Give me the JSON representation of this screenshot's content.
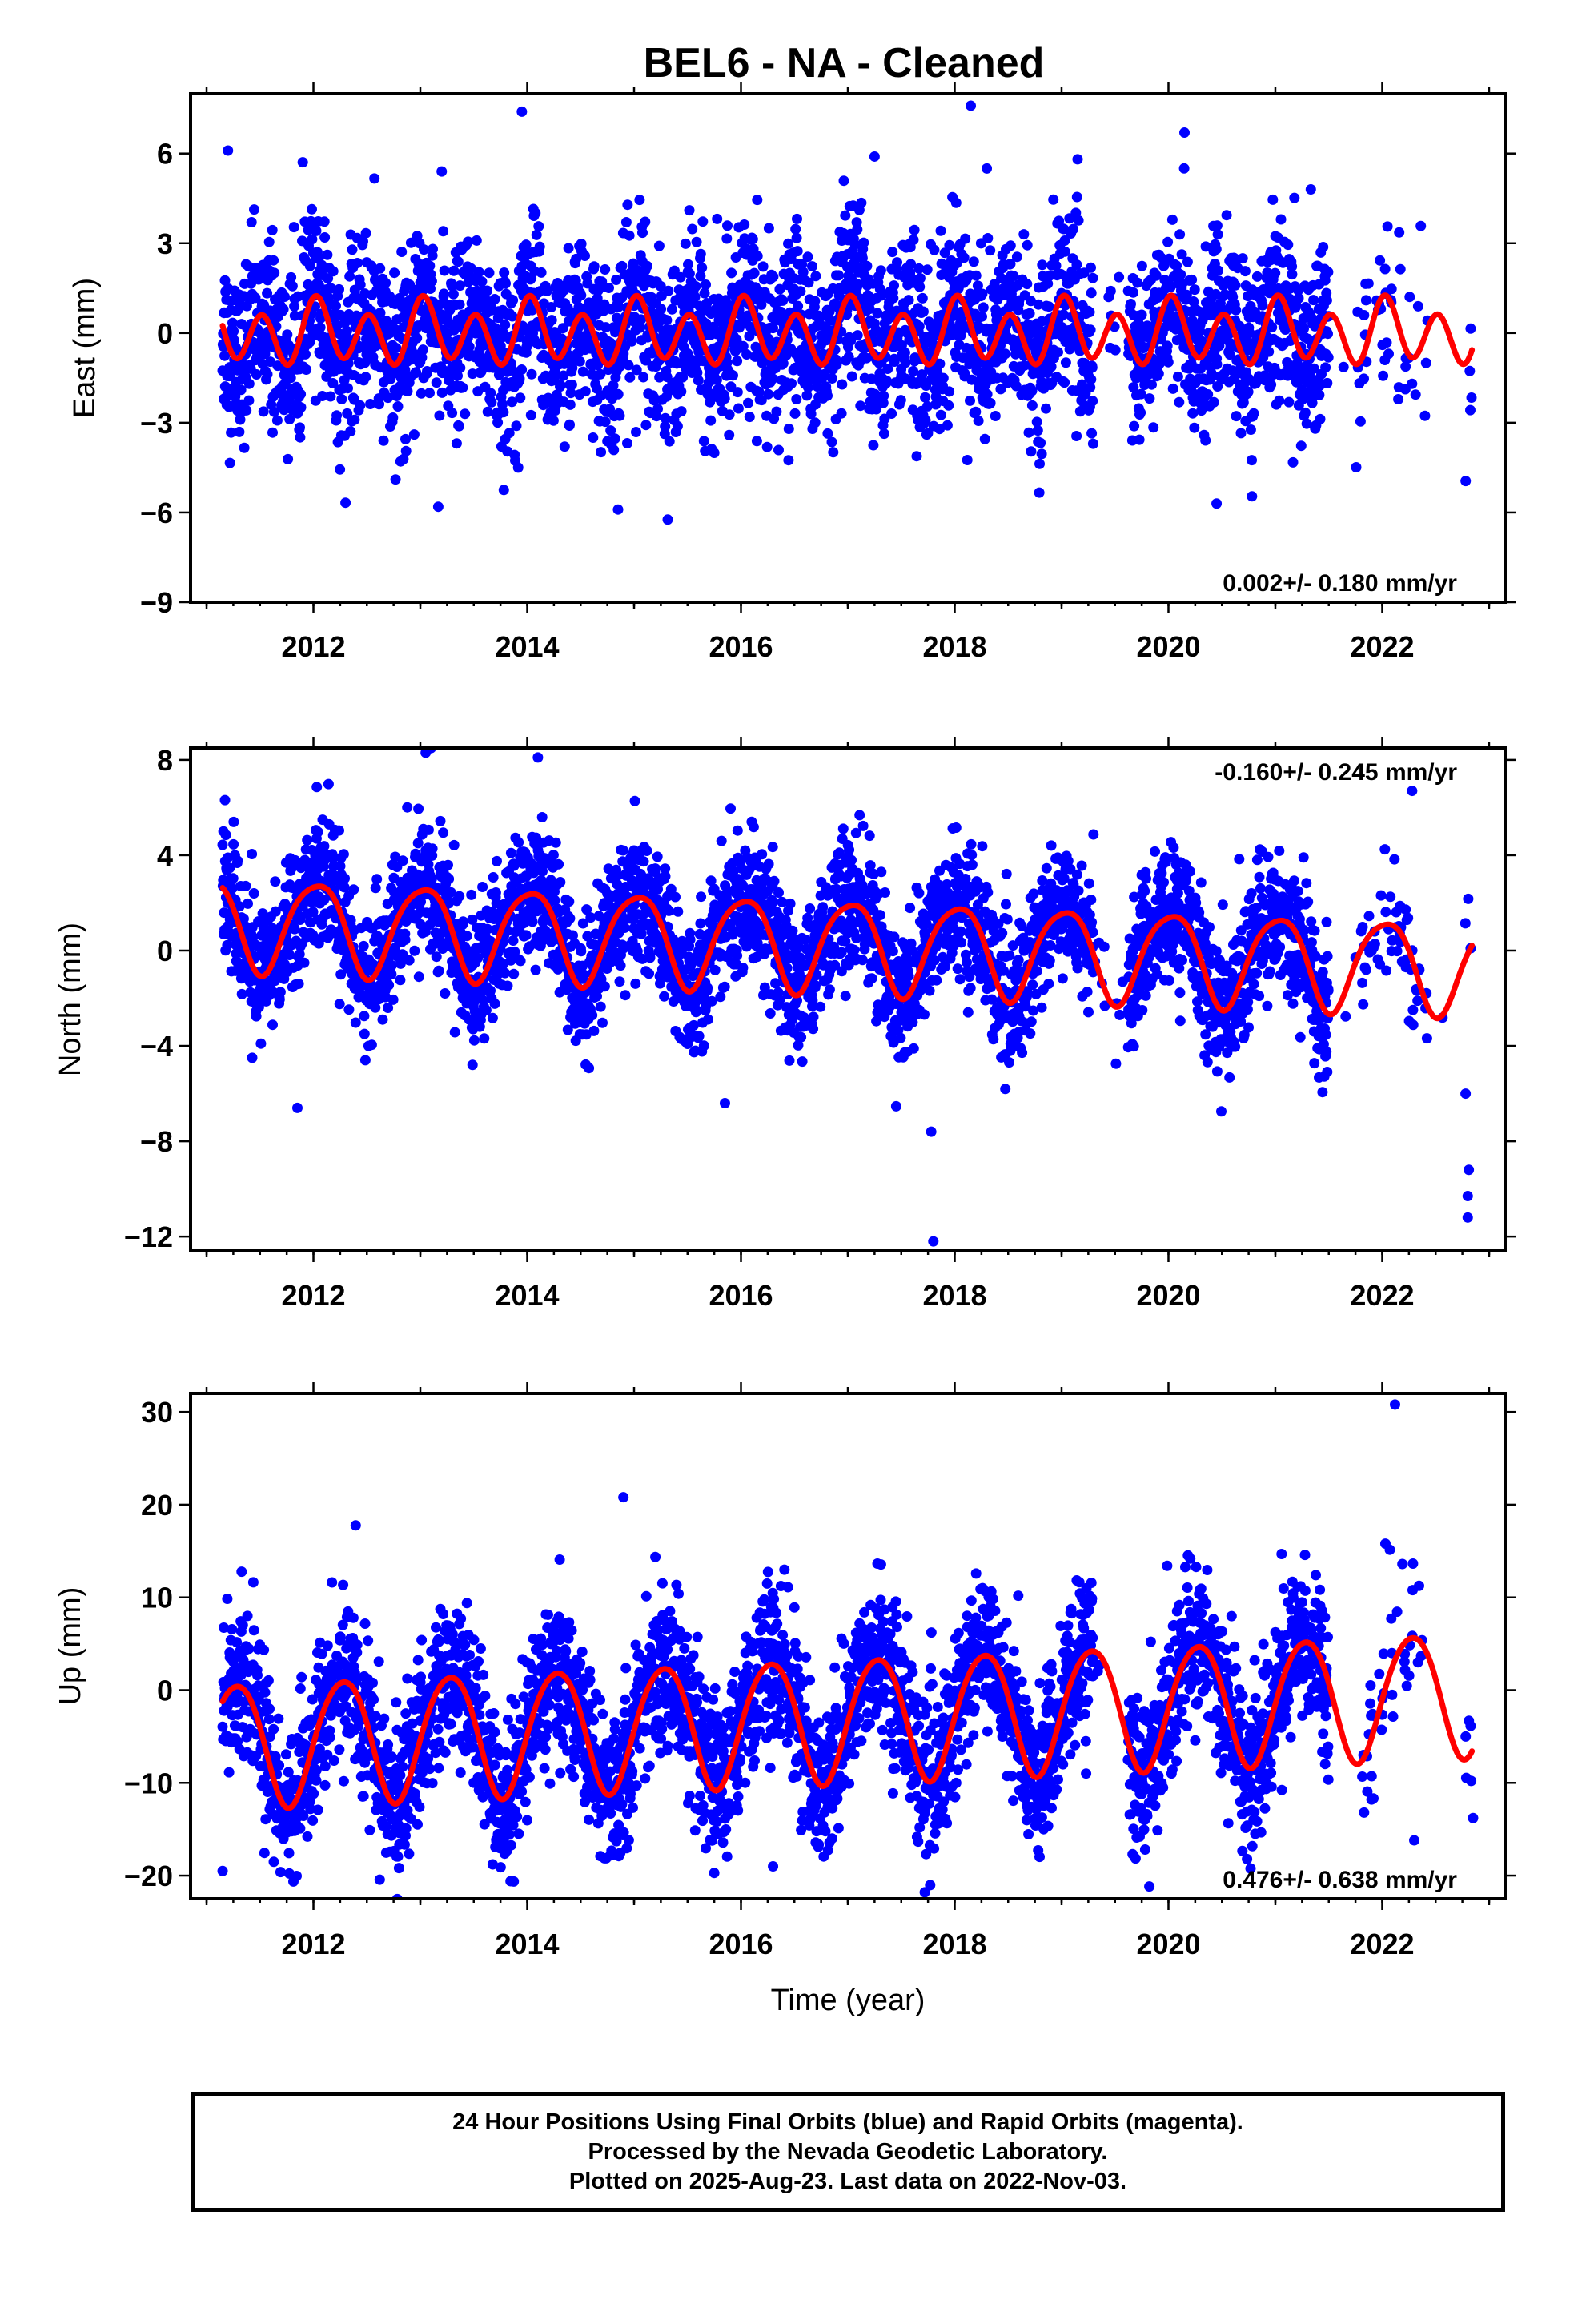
{
  "title": "BEL6  - NA - Cleaned",
  "colors": {
    "final_orbits": "#0000ff",
    "fit": "#ff0000"
  },
  "chart_data": [
    {
      "type": "scatter",
      "panel": "east",
      "ylabel": "East (mm)",
      "xlabel": "",
      "xlim": [
        2010.85,
        2023.15
      ],
      "ylim": [
        -9,
        8
      ],
      "xticks": [
        "2012",
        "2014",
        "2016",
        "2018",
        "2020",
        "2022"
      ],
      "yticks": [
        "6",
        "3",
        "0",
        "−3",
        "−6",
        "−9"
      ],
      "ytick_values": [
        6,
        3,
        0,
        -3,
        -6,
        -9
      ],
      "rate_label": "0.002+/- 0.180 mm/yr",
      "rate_pos": "bottom-right",
      "data_span": [
        2011.15,
        2022.84
      ],
      "gaps": [
        [
          2019.3,
          2019.62
        ],
        [
          2021.5,
          2021.73
        ],
        [
          2022.42,
          2022.76
        ]
      ],
      "noise_sd": 1.45,
      "fit": {
        "offset": 0.0,
        "trend": 0.002,
        "annual_cos": 0.3,
        "annual_sin": 0.15,
        "semiannual_cos": 0.9,
        "semiannual_sin": 0.25
      },
      "outliers": [
        {
          "x": 2011.2,
          "y": 6.1
        },
        {
          "x": 2013.95,
          "y": 7.4
        },
        {
          "x": 2014.85,
          "y": -5.9
        },
        {
          "x": 2018.15,
          "y": 7.6
        },
        {
          "x": 2018.3,
          "y": 5.5
        },
        {
          "x": 2020.15,
          "y": 6.7
        },
        {
          "x": 2020.45,
          "y": -5.7
        },
        {
          "x": 2013.2,
          "y": 5.4
        },
        {
          "x": 2017.25,
          "y": 5.9
        }
      ]
    },
    {
      "type": "scatter",
      "panel": "north",
      "ylabel": "North (mm)",
      "xlabel": "",
      "xlim": [
        2010.85,
        2023.15
      ],
      "ylim": [
        -12.6,
        8.5
      ],
      "xticks": [
        "2012",
        "2014",
        "2016",
        "2018",
        "2020",
        "2022"
      ],
      "yticks": [
        "8",
        "4",
        "0",
        "−4",
        "−8",
        "−12"
      ],
      "ytick_values": [
        8,
        4,
        0,
        -4,
        -8,
        -12
      ],
      "rate_label": "-0.160+/- 0.245 mm/yr",
      "rate_pos": "top-right",
      "data_span": [
        2011.15,
        2022.84
      ],
      "gaps": [
        [
          2019.3,
          2019.62
        ],
        [
          2021.5,
          2021.73
        ],
        [
          2022.42,
          2022.76
        ]
      ],
      "noise_sd": 1.4,
      "fit": {
        "offset": 0.25,
        "trend": -0.16,
        "annual_cos": 1.9,
        "annual_sin": 0.3,
        "semiannual_cos": -0.3,
        "semiannual_sin": 0.0
      },
      "outliers": [
        {
          "x": 2013.05,
          "y": 8.3
        },
        {
          "x": 2014.1,
          "y": 8.1
        },
        {
          "x": 2017.8,
          "y": -12.2
        },
        {
          "x": 2017.78,
          "y": -7.6
        },
        {
          "x": 2022.8,
          "y": -11.2
        },
        {
          "x": 2022.8,
          "y": -10.3
        },
        {
          "x": 2022.81,
          "y": -9.2
        },
        {
          "x": 2022.78,
          "y": -6.0
        },
        {
          "x": 2022.28,
          "y": 6.7
        },
        {
          "x": 2011.85,
          "y": -6.6
        },
        {
          "x": 2015.85,
          "y": -6.4
        }
      ]
    },
    {
      "type": "scatter",
      "panel": "up",
      "ylabel": "Up (mm)",
      "xlabel": "Time (year)",
      "xlim": [
        2010.85,
        2023.15
      ],
      "ylim": [
        -22.5,
        32
      ],
      "xticks": [
        "2012",
        "2014",
        "2016",
        "2018",
        "2020",
        "2022"
      ],
      "yticks": [
        "30",
        "20",
        "10",
        "0",
        "−10",
        "−20"
      ],
      "ytick_values": [
        30,
        20,
        10,
        0,
        -10,
        -20
      ],
      "rate_label": "0.476+/- 0.638 mm/yr",
      "rate_pos": "bottom-right",
      "data_span": [
        2011.15,
        2022.84
      ],
      "gaps": [
        [
          2019.3,
          2019.62
        ],
        [
          2021.5,
          2021.73
        ],
        [
          2022.42,
          2022.76
        ]
      ],
      "noise_sd": 4.2,
      "fit": {
        "offset": -3.0,
        "trend": 0.476,
        "annual_cos": -1.0,
        "annual_sin": 6.6,
        "semiannual_cos": 0.6,
        "semiannual_sin": 0.0
      },
      "outliers": [
        {
          "x": 2022.12,
          "y": 30.8
        },
        {
          "x": 2014.9,
          "y": 20.8
        },
        {
          "x": 2017.72,
          "y": -21.8
        },
        {
          "x": 2022.03,
          "y": 15.8
        },
        {
          "x": 2011.15,
          "y": -19.5
        },
        {
          "x": 2016.3,
          "y": -19.0
        },
        {
          "x": 2022.85,
          "y": -13.8
        },
        {
          "x": 2022.3,
          "y": -16.2
        },
        {
          "x": 2021.9,
          "y": -11.8
        }
      ]
    }
  ],
  "footer": {
    "line1": "24 Hour Positions Using Final Orbits (blue) and Rapid Orbits (magenta).",
    "line2": "Processed by the Nevada Geodetic Laboratory.",
    "line3": "Plotted on 2025-Aug-23. Last data on 2022-Nov-03."
  }
}
